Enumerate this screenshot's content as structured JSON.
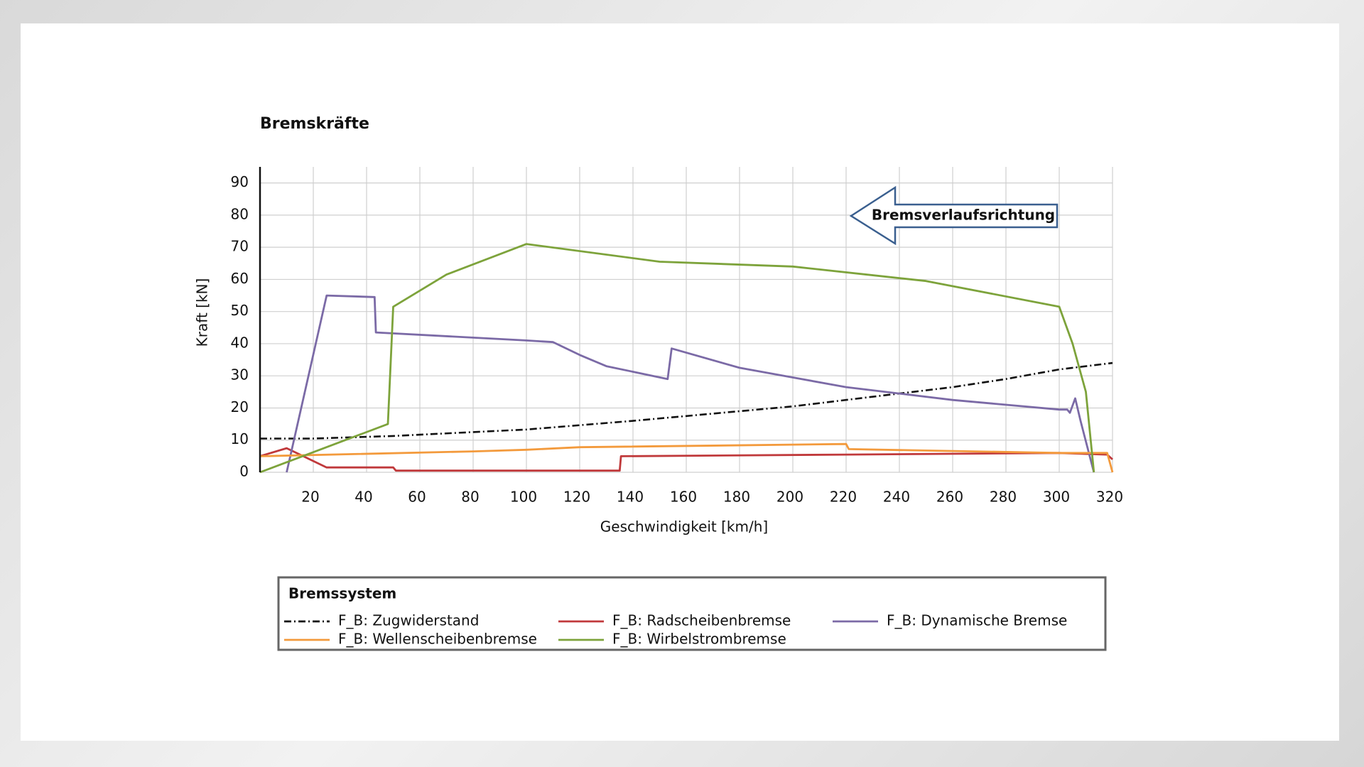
{
  "chart_data": {
    "type": "line",
    "title": "Bremskräfte",
    "x_label": "Geschwindigkeit [km/h]",
    "y_label": "Kraft [kN]",
    "annotation": "Bremsverlaufsrichtung",
    "legend_title": "Bremssystem",
    "xlim": [
      0,
      320
    ],
    "ylim": [
      0,
      95
    ],
    "xticks": [
      20,
      40,
      60,
      80,
      100,
      120,
      140,
      160,
      180,
      200,
      220,
      240,
      260,
      280,
      300,
      320
    ],
    "yticks": [
      0,
      10,
      20,
      30,
      40,
      50,
      60,
      70,
      80,
      90
    ],
    "grid": true,
    "series": [
      {
        "name": "F_B: Zugwiderstand",
        "color": "#111111",
        "dash": "dashdot",
        "x": [
          0,
          20,
          50,
          80,
          100,
          140,
          180,
          200,
          240,
          260,
          280,
          300,
          320
        ],
        "values": [
          10.5,
          10.5,
          11.3,
          12.5,
          13.3,
          16,
          19,
          20.5,
          24.5,
          26.5,
          29,
          32,
          34
        ]
      },
      {
        "name": "F_B: Radscheibenbremse",
        "color": "#c0393b",
        "dash": "solid",
        "x": [
          0,
          10,
          25,
          50,
          51,
          135,
          135.5,
          220,
          300,
          318,
          320
        ],
        "values": [
          5,
          7.5,
          1.5,
          1.5,
          0.5,
          0.5,
          5,
          5.5,
          6,
          5.5,
          4
        ]
      },
      {
        "name": "F_B: Dynamische Bremse",
        "color": "#7b6aa6",
        "dash": "solid",
        "x": [
          10,
          25,
          43,
          43.5,
          100,
          110,
          120,
          130,
          153,
          154.5,
          180,
          200,
          220,
          260,
          300,
          303,
          304,
          306,
          308,
          313
        ],
        "values": [
          0,
          55,
          54.5,
          43.5,
          41,
          40.5,
          36.5,
          33,
          29,
          38.5,
          32.5,
          29.5,
          26.5,
          22.5,
          19.5,
          19.5,
          18.5,
          23,
          16,
          0
        ]
      },
      {
        "name": "F_B: Wellenscheibenbremse",
        "color": "#f39a3c",
        "dash": "solid",
        "x": [
          0,
          80,
          100,
          120,
          220,
          221,
          300,
          318,
          320
        ],
        "values": [
          5,
          6.5,
          7,
          7.8,
          8.8,
          7.2,
          6,
          6,
          0
        ]
      },
      {
        "name": "F_B: Wirbelstrombremse",
        "color": "#7da33b",
        "dash": "solid",
        "x": [
          0,
          48,
          50,
          70,
          100,
          150,
          200,
          250,
          300,
          305,
          310,
          313
        ],
        "values": [
          0,
          15,
          51.5,
          61.5,
          71,
          65.5,
          64,
          59.5,
          51.5,
          40,
          25,
          0
        ]
      }
    ]
  }
}
